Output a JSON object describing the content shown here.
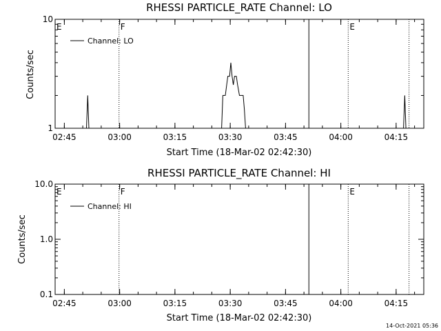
{
  "chart_data": [
    {
      "type": "line",
      "title": "RHESSI PARTICLE_RATE Channel: LO",
      "xlabel": "Start Time (18-Mar-02 02:42:30)",
      "ylabel": "Counts/sec",
      "y_scale": "log",
      "ylim": [
        1,
        10
      ],
      "y_ticks": [
        "1",
        "10"
      ],
      "xlim": [
        "02:42:30",
        "04:22:30"
      ],
      "x_ticks": [
        "02:45",
        "03:00",
        "03:15",
        "03:30",
        "03:45",
        "04:00",
        "04:15"
      ],
      "grid": false,
      "legend": "top-left",
      "series": [
        {
          "name": "Channel: LO",
          "points": [
            [
              "02:51:00",
              1
            ],
            [
              "02:51:20",
              2
            ],
            [
              "02:51:40",
              1
            ],
            [
              "03:27:40",
              1
            ],
            [
              "03:28:00",
              2
            ],
            [
              "03:28:40",
              2
            ],
            [
              "03:29:20",
              3
            ],
            [
              "03:29:50",
              3
            ],
            [
              "03:30:10",
              4
            ],
            [
              "03:30:30",
              3
            ],
            [
              "03:30:50",
              2.5
            ],
            [
              "03:31:10",
              3
            ],
            [
              "03:31:40",
              3
            ],
            [
              "03:32:00",
              2.5
            ],
            [
              "03:32:30",
              2
            ],
            [
              "03:33:30",
              2
            ],
            [
              "03:33:50",
              1.5
            ],
            [
              "03:34:10",
              1
            ],
            [
              "04:17:00",
              1
            ],
            [
              "04:17:20",
              2
            ],
            [
              "04:17:40",
              1
            ]
          ]
        }
      ],
      "markers": [
        {
          "label": "E",
          "time": "02:42:30",
          "style": "dotted"
        },
        {
          "label": "F",
          "time": "02:59:50",
          "style": "dotted"
        },
        {
          "label": "",
          "time": "03:51:20",
          "style": "solid"
        },
        {
          "label": "E",
          "time": "04:02:00",
          "style": "dotted"
        },
        {
          "label": "",
          "time": "04:18:30",
          "style": "dotted"
        }
      ]
    },
    {
      "type": "line",
      "title": "RHESSI PARTICLE_RATE Channel: HI",
      "xlabel": "Start Time (18-Mar-02 02:42:30)",
      "ylabel": "Counts/sec",
      "y_scale": "log",
      "ylim": [
        0.1,
        10
      ],
      "y_ticks": [
        "0.1",
        "1.0",
        "10.0"
      ],
      "xlim": [
        "02:42:30",
        "04:22:30"
      ],
      "x_ticks": [
        "02:45",
        "03:00",
        "03:15",
        "03:30",
        "03:45",
        "04:00",
        "04:15"
      ],
      "grid": false,
      "legend": "top-left",
      "series": [
        {
          "name": "Channel: HI",
          "points": []
        }
      ],
      "markers": [
        {
          "label": "E",
          "time": "02:42:30",
          "style": "dotted"
        },
        {
          "label": "F",
          "time": "02:59:50",
          "style": "dotted"
        },
        {
          "label": "",
          "time": "03:51:20",
          "style": "solid"
        },
        {
          "label": "E",
          "time": "04:02:00",
          "style": "dotted"
        },
        {
          "label": "",
          "time": "04:18:30",
          "style": "dotted"
        }
      ]
    }
  ],
  "footer": {
    "date_stamp": "14-Oct-2021 05:36"
  }
}
